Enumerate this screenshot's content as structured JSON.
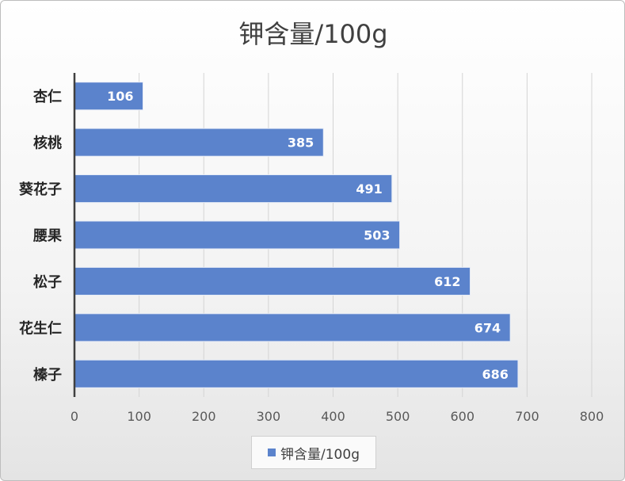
{
  "chart_data": {
    "type": "bar",
    "orientation": "horizontal",
    "title": "钾含量/100g",
    "categories": [
      "杏仁",
      "核桃",
      "葵花子",
      "腰果",
      "松子",
      "花生仁",
      "榛子"
    ],
    "series": [
      {
        "name": "钾含量/100g",
        "values": [
          106,
          385,
          491,
          503,
          612,
          674,
          686
        ],
        "color": "#5b83cc"
      }
    ],
    "xlim": [
      0,
      800
    ],
    "x_ticks": [
      0,
      100,
      200,
      300,
      400,
      500,
      600,
      700,
      800
    ],
    "grid": true,
    "legend_position": "bottom"
  }
}
